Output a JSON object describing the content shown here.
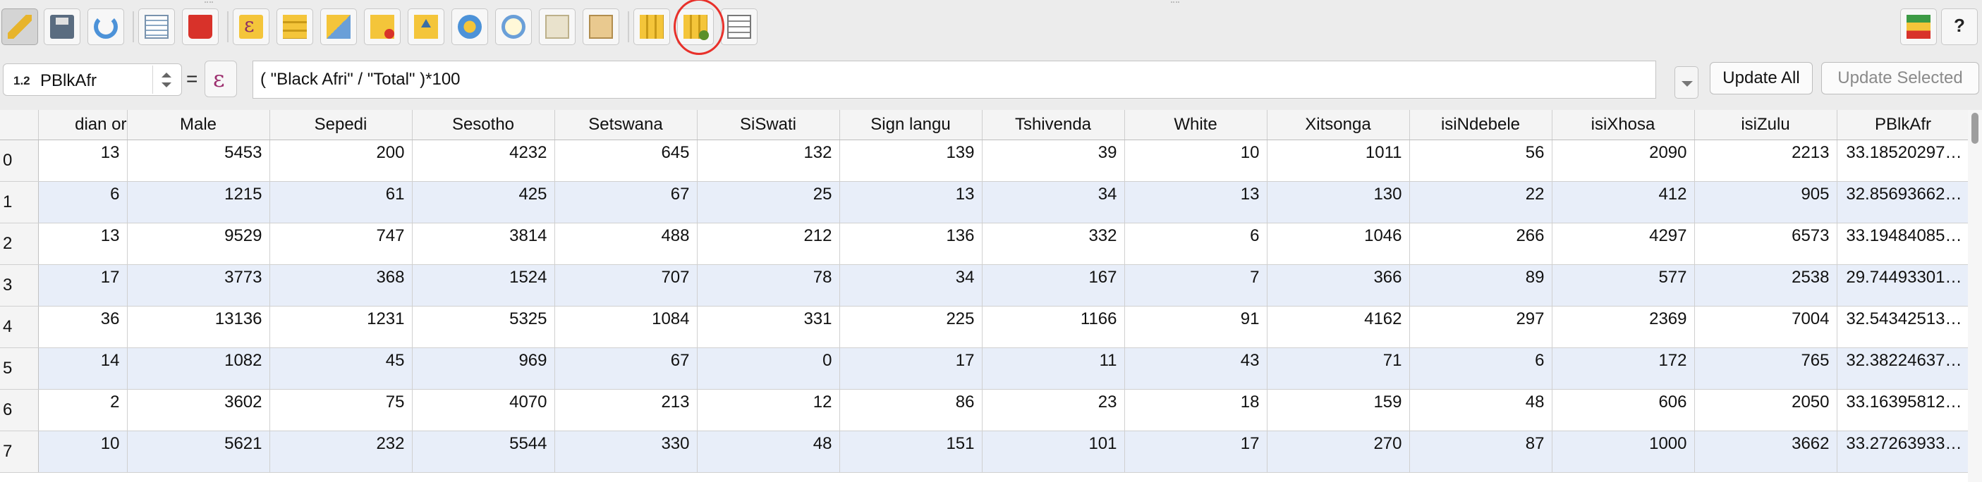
{
  "toolbar": {
    "buttons": [
      {
        "name": "toggle-editing-button",
        "icon": "pencil-icon"
      },
      {
        "name": "save-edits-button",
        "icon": "floppy-icon"
      },
      {
        "name": "reload-table-button",
        "icon": "refresh-icon"
      },
      {
        "name": "add-feature-button",
        "icon": "table-icon"
      },
      {
        "name": "delete-selected-button",
        "icon": "trash-icon"
      },
      {
        "name": "select-by-expression-button",
        "icon": "expression-icon"
      },
      {
        "name": "select-all-button",
        "icon": "rows-icon"
      },
      {
        "name": "invert-selection-button",
        "icon": "select-shape-icon"
      },
      {
        "name": "deselect-all-button",
        "icon": "deselect-icon"
      },
      {
        "name": "move-selection-to-top-button",
        "icon": "move-top-icon"
      },
      {
        "name": "pan-to-selection-button",
        "icon": "pan-icon"
      },
      {
        "name": "zoom-to-selection-button",
        "icon": "zoom-icon"
      },
      {
        "name": "copy-rows-button",
        "icon": "copy-icon"
      },
      {
        "name": "paste-rows-button",
        "icon": "paste-icon"
      },
      {
        "name": "new-field-button",
        "icon": "new-field-icon"
      },
      {
        "name": "delete-field-button",
        "icon": "delete-field-icon"
      },
      {
        "name": "field-calculator-button",
        "icon": "calculator-icon"
      }
    ],
    "right_buttons": [
      {
        "name": "dock-button",
        "icon": "dock-icon"
      },
      {
        "name": "help-button",
        "icon": "help-icon"
      }
    ]
  },
  "expression_bar": {
    "field_type": "1.2",
    "field_name": "PBlkAfr",
    "equals": "=",
    "epsilon": "ε",
    "expression": "( \"Black Afri\" / \"Total\" )*100",
    "update_all": "Update All",
    "update_selected": "Update Selected"
  },
  "table": {
    "columns": [
      "dian or",
      "Male",
      "Sepedi",
      "Sesotho",
      "Setswana",
      "SiSwati",
      "Sign langu",
      "Tshivenda",
      "White",
      "Xitsonga",
      "isiNdebele",
      "isiXhosa",
      "isiZulu",
      "PBlkAfr"
    ],
    "rows": [
      {
        "index": "0",
        "cells": [
          "13",
          "5453",
          "200",
          "4232",
          "645",
          "132",
          "139",
          "39",
          "10",
          "1011",
          "56",
          "2090",
          "2213",
          "33.18520297…"
        ]
      },
      {
        "index": "1",
        "cells": [
          "6",
          "1215",
          "61",
          "425",
          "67",
          "25",
          "13",
          "34",
          "13",
          "130",
          "22",
          "412",
          "905",
          "32.85693662…"
        ]
      },
      {
        "index": "2",
        "cells": [
          "13",
          "9529",
          "747",
          "3814",
          "488",
          "212",
          "136",
          "332",
          "6",
          "1046",
          "266",
          "4297",
          "6573",
          "33.19484085…"
        ]
      },
      {
        "index": "3",
        "cells": [
          "17",
          "3773",
          "368",
          "1524",
          "707",
          "78",
          "34",
          "167",
          "7",
          "366",
          "89",
          "577",
          "2538",
          "29.74493301…"
        ]
      },
      {
        "index": "4",
        "cells": [
          "36",
          "13136",
          "1231",
          "5325",
          "1084",
          "331",
          "225",
          "1166",
          "91",
          "4162",
          "297",
          "2369",
          "7004",
          "32.54342513…"
        ]
      },
      {
        "index": "5",
        "cells": [
          "14",
          "1082",
          "45",
          "969",
          "67",
          "0",
          "17",
          "11",
          "43",
          "71",
          "6",
          "172",
          "765",
          "32.38224637…"
        ]
      },
      {
        "index": "6",
        "cells": [
          "2",
          "3602",
          "75",
          "4070",
          "213",
          "12",
          "86",
          "23",
          "18",
          "159",
          "48",
          "606",
          "2050",
          "33.16395812…"
        ]
      },
      {
        "index": "7",
        "cells": [
          "10",
          "5621",
          "232",
          "5544",
          "330",
          "48",
          "151",
          "101",
          "17",
          "270",
          "87",
          "1000",
          "3662",
          "33.27263933…"
        ]
      }
    ]
  },
  "colors": {
    "alt_row": "#e8eef9",
    "highlight_ring": "#e8302a",
    "expression_epsilon": "#9c2e6e"
  }
}
